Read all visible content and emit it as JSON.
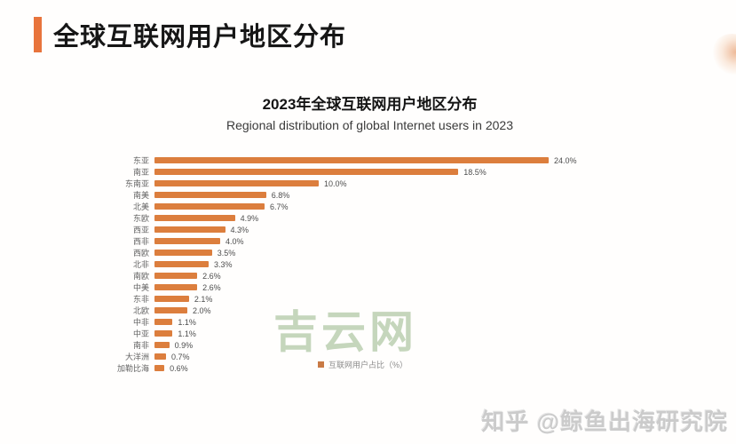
{
  "header": {
    "title": "全球互联网用户地区分布",
    "accent_color": "#E8743C"
  },
  "chart_data": {
    "type": "bar",
    "orientation": "horizontal",
    "title": "2023年全球互联网用户地区分布",
    "subtitle": "Regional distribution of global Internet users in 2023",
    "categories": [
      "东亚",
      "南亚",
      "东南亚",
      "南美",
      "北美",
      "东欧",
      "西亚",
      "西非",
      "西欧",
      "北非",
      "南欧",
      "中美",
      "东非",
      "北欧",
      "中非",
      "中亚",
      "南非",
      "大洋洲",
      "加勒比海"
    ],
    "values": [
      24.0,
      18.5,
      10.0,
      6.8,
      6.7,
      4.9,
      4.3,
      4.0,
      3.5,
      3.3,
      2.6,
      2.6,
      2.1,
      2.0,
      1.1,
      1.1,
      0.9,
      0.7,
      0.6
    ],
    "value_labels": [
      "24.0%",
      "18.5%",
      "10.0%",
      "6.8%",
      "6.7%",
      "4.9%",
      "4.3%",
      "4.0%",
      "3.5%",
      "3.3%",
      "2.6%",
      "2.6%",
      "2.1%",
      "2.0%",
      "1.1%",
      "1.1%",
      "0.9%",
      "0.7%",
      "0.6%"
    ],
    "legend": "互联网用户占比（%）",
    "legend_position": "bottom-center",
    "xlim": [
      0,
      26
    ],
    "grid": false,
    "bar_color": "#DC7E3D"
  },
  "watermarks": {
    "center": "吉云网",
    "bottom_right": "知乎 @鲸鱼出海研究院"
  }
}
